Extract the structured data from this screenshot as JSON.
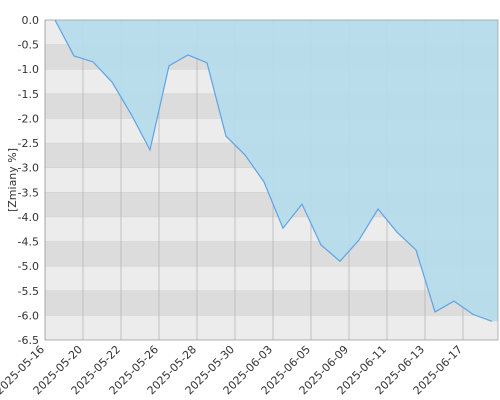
{
  "chart_data": {
    "type": "area",
    "y_label": "[Zmiany %]",
    "categories": [
      "2025-05-16",
      null,
      "2025-05-20",
      null,
      "2025-05-22",
      null,
      "2025-05-26",
      null,
      "2025-05-28",
      null,
      "2025-05-30",
      null,
      "2025-06-03",
      null,
      "2025-06-05",
      null,
      "2025-06-09",
      null,
      "2025-06-11",
      null,
      "2025-06-13",
      null,
      "2025-06-17",
      null
    ],
    "values": [
      0,
      -0.73,
      -0.85,
      -1.26,
      -1.91,
      -2.64,
      -0.93,
      -0.71,
      -0.87,
      -2.36,
      -2.74,
      -3.29,
      -4.23,
      -3.74,
      -4.57,
      -4.9,
      -4.47,
      -3.84,
      -4.31,
      -4.67,
      -5.93,
      -5.71,
      -5.98,
      -6.12
    ],
    "color": "#5aa5e8",
    "fill": "#b5dcec",
    "ylim": [
      -6.5,
      0
    ],
    "yticks": [
      {
        "value": 0,
        "label": "0.0"
      },
      -0.5,
      {
        "value": -1,
        "label": "-1.0"
      },
      -1.5,
      {
        "value": -2,
        "label": "-2.0"
      },
      -2.5,
      {
        "value": -3,
        "label": "-3.0"
      },
      -3.5,
      {
        "value": -4,
        "label": "-4.0"
      },
      -4.5,
      {
        "value": -5,
        "label": "-5.0"
      },
      -5.5,
      {
        "value": -6,
        "label": "-6.0"
      },
      -6.5
    ],
    "grid": true
  }
}
